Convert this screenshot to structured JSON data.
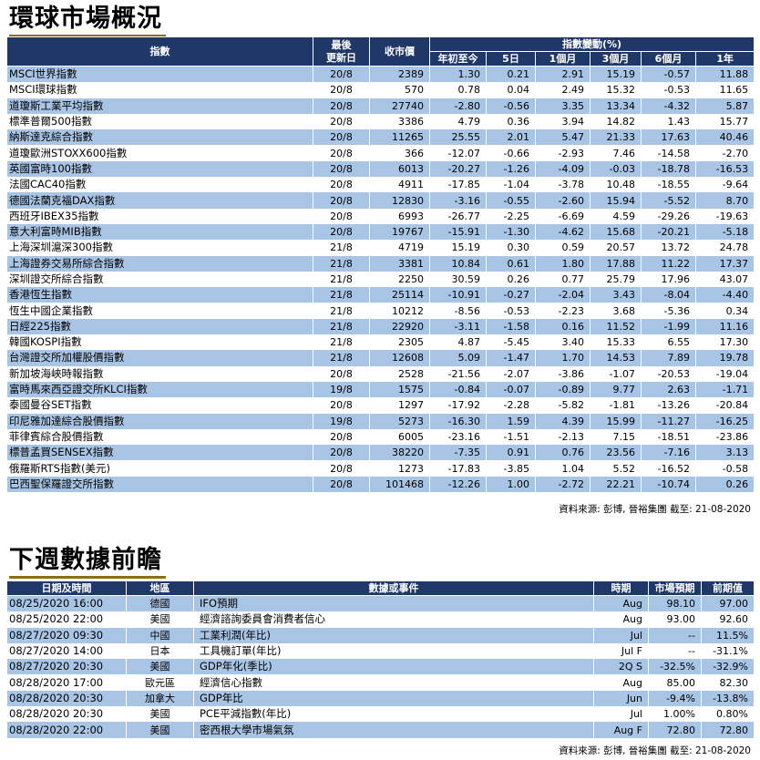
{
  "market": {
    "title": "環球市場概況",
    "headers": {
      "index": "指數",
      "last_update": "最後\n更新日",
      "close": "收市價",
      "change_group": "指數變動(%)",
      "ytd": "年初至今",
      "d5": "5日",
      "m1": "1個月",
      "m3": "3個月",
      "m6": "6個月",
      "y1": "1年"
    },
    "rows": [
      [
        "MSCI世界指數",
        "20/8",
        "2389",
        "1.30",
        "0.21",
        "2.91",
        "15.19",
        "-0.57",
        "11.88"
      ],
      [
        "MSCI環球指數",
        "20/8",
        "570",
        "0.78",
        "0.04",
        "2.49",
        "15.32",
        "-0.53",
        "11.65"
      ],
      [
        "道瓊斯工業平均指數",
        "20/8",
        "27740",
        "-2.80",
        "-0.56",
        "3.35",
        "13.34",
        "-4.32",
        "5.87"
      ],
      [
        "標準普爾500指數",
        "20/8",
        "3386",
        "4.79",
        "0.36",
        "3.94",
        "14.82",
        "1.43",
        "15.77"
      ],
      [
        "納斯達克綜合指數",
        "20/8",
        "11265",
        "25.55",
        "2.01",
        "5.47",
        "21.33",
        "17.63",
        "40.46"
      ],
      [
        "道瓊歐洲STOXX600指數",
        "20/8",
        "366",
        "-12.07",
        "-0.66",
        "-2.93",
        "7.46",
        "-14.58",
        "-2.70"
      ],
      [
        "英國富時100指數",
        "20/8",
        "6013",
        "-20.27",
        "-1.26",
        "-4.09",
        "-0.03",
        "-18.78",
        "-16.53"
      ],
      [
        "法國CAC40指數",
        "20/8",
        "4911",
        "-17.85",
        "-1.04",
        "-3.78",
        "10.48",
        "-18.55",
        "-9.64"
      ],
      [
        "德國法蘭克福DAX指數",
        "20/8",
        "12830",
        "-3.16",
        "-0.55",
        "-2.60",
        "15.94",
        "-5.52",
        "8.70"
      ],
      [
        "西班牙IBEX35指數",
        "20/8",
        "6993",
        "-26.77",
        "-2.25",
        "-6.69",
        "4.59",
        "-29.26",
        "-19.63"
      ],
      [
        "意大利富時MIB指數",
        "20/8",
        "19767",
        "-15.91",
        "-1.30",
        "-4.62",
        "15.68",
        "-20.21",
        "-5.18"
      ],
      [
        "上海深圳滬深300指數",
        "21/8",
        "4719",
        "15.19",
        "0.30",
        "0.59",
        "20.57",
        "13.72",
        "24.78"
      ],
      [
        "上海證券交易所綜合指數",
        "21/8",
        "3381",
        "10.84",
        "0.61",
        "1.80",
        "17.88",
        "11.22",
        "17.37"
      ],
      [
        "深圳證交所綜合指數",
        "21/8",
        "2250",
        "30.59",
        "0.26",
        "0.77",
        "25.79",
        "17.96",
        "43.07"
      ],
      [
        "香港恆生指數",
        "21/8",
        "25114",
        "-10.91",
        "-0.27",
        "-2.04",
        "3.43",
        "-8.04",
        "-4.40"
      ],
      [
        "恆生中國企業指數",
        "21/8",
        "10212",
        "-8.56",
        "-0.53",
        "-2.23",
        "3.68",
        "-5.36",
        "0.34"
      ],
      [
        "日經225指數",
        "21/8",
        "22920",
        "-3.11",
        "-1.58",
        "0.16",
        "11.52",
        "-1.99",
        "11.16"
      ],
      [
        "韓國KOSPI指數",
        "21/8",
        "2305",
        "4.87",
        "-5.45",
        "3.40",
        "15.33",
        "6.55",
        "17.30"
      ],
      [
        "台灣證交所加權股價指數",
        "21/8",
        "12608",
        "5.09",
        "-1.47",
        "1.70",
        "14.53",
        "7.89",
        "19.78"
      ],
      [
        "新加坡海峽時報指數",
        "20/8",
        "2528",
        "-21.56",
        "-2.07",
        "-3.86",
        "-1.07",
        "-20.53",
        "-19.04"
      ],
      [
        "富時馬來西亞證交所KLCI指數",
        "19/8",
        "1575",
        "-0.84",
        "-0.07",
        "-0.89",
        "9.77",
        "2.63",
        "-1.71"
      ],
      [
        "泰國曼谷SET指數",
        "20/8",
        "1297",
        "-17.92",
        "-2.28",
        "-5.82",
        "-1.81",
        "-13.26",
        "-20.84"
      ],
      [
        "印尼雅加達綜合股價指數",
        "19/8",
        "5273",
        "-16.30",
        "1.59",
        "4.39",
        "15.99",
        "-11.27",
        "-16.25"
      ],
      [
        "菲律賓綜合股價指數",
        "20/8",
        "6005",
        "-23.16",
        "-1.51",
        "-2.13",
        "7.15",
        "-18.51",
        "-23.86"
      ],
      [
        "標普孟買SENSEX指數",
        "20/8",
        "38220",
        "-7.35",
        "0.91",
        "0.76",
        "23.56",
        "-7.16",
        "3.13"
      ],
      [
        "俄羅斯RTS指數(美元)",
        "20/8",
        "1273",
        "-17.83",
        "-3.85",
        "1.04",
        "5.52",
        "-16.52",
        "-0.58"
      ],
      [
        "巴西聖保羅證交所指數",
        "20/8",
        "101468",
        "-12.26",
        "1.00",
        "-2.72",
        "22.21",
        "-10.74",
        "0.26"
      ]
    ],
    "source": "資料來源: 彭博, 晉裕集團 截至: 21-08-2020"
  },
  "calendar": {
    "title": "下週數據前瞻",
    "headers": {
      "datetime": "日期及時間",
      "region": "地區",
      "event": "數據或事件",
      "period": "時期",
      "forecast": "市場預期",
      "previous": "前期值"
    },
    "rows": [
      [
        "08/25/2020 16:00",
        "德國",
        "IFO預期",
        "Aug",
        "98.10",
        "97.00"
      ],
      [
        "08/25/2020 22:00",
        "美國",
        "經濟諮詢委員會消費者信心",
        "Aug",
        "93.00",
        "92.60"
      ],
      [
        "08/27/2020 09:30",
        "中國",
        "工業利潤(年比)",
        "Jul",
        "--",
        "11.5%"
      ],
      [
        "08/27/2020 14:00",
        "日本",
        "工具機訂單(年比)",
        "Jul F",
        "--",
        "-31.1%"
      ],
      [
        "08/27/2020 20:30",
        "美國",
        "GDP年化(季比)",
        "2Q S",
        "-32.5%",
        "-32.9%"
      ],
      [
        "08/28/2020 17:00",
        "歐元區",
        "經濟信心指數",
        "Aug",
        "85.00",
        "82.30"
      ],
      [
        "08/28/2020 20:30",
        "加拿大",
        "GDP年比",
        "Jun",
        "-9.4%",
        "-13.8%"
      ],
      [
        "08/28/2020 20:30",
        "美國",
        "PCE平減指數(年比)",
        "Jul",
        "1.00%",
        "0.80%"
      ],
      [
        "08/28/2020 22:00",
        "美國",
        "密西根大學市場氣氛",
        "Aug F",
        "72.80",
        "72.80"
      ]
    ],
    "source": "資料來源: 彭博, 晉裕集團 截至: 21-08-2020"
  }
}
